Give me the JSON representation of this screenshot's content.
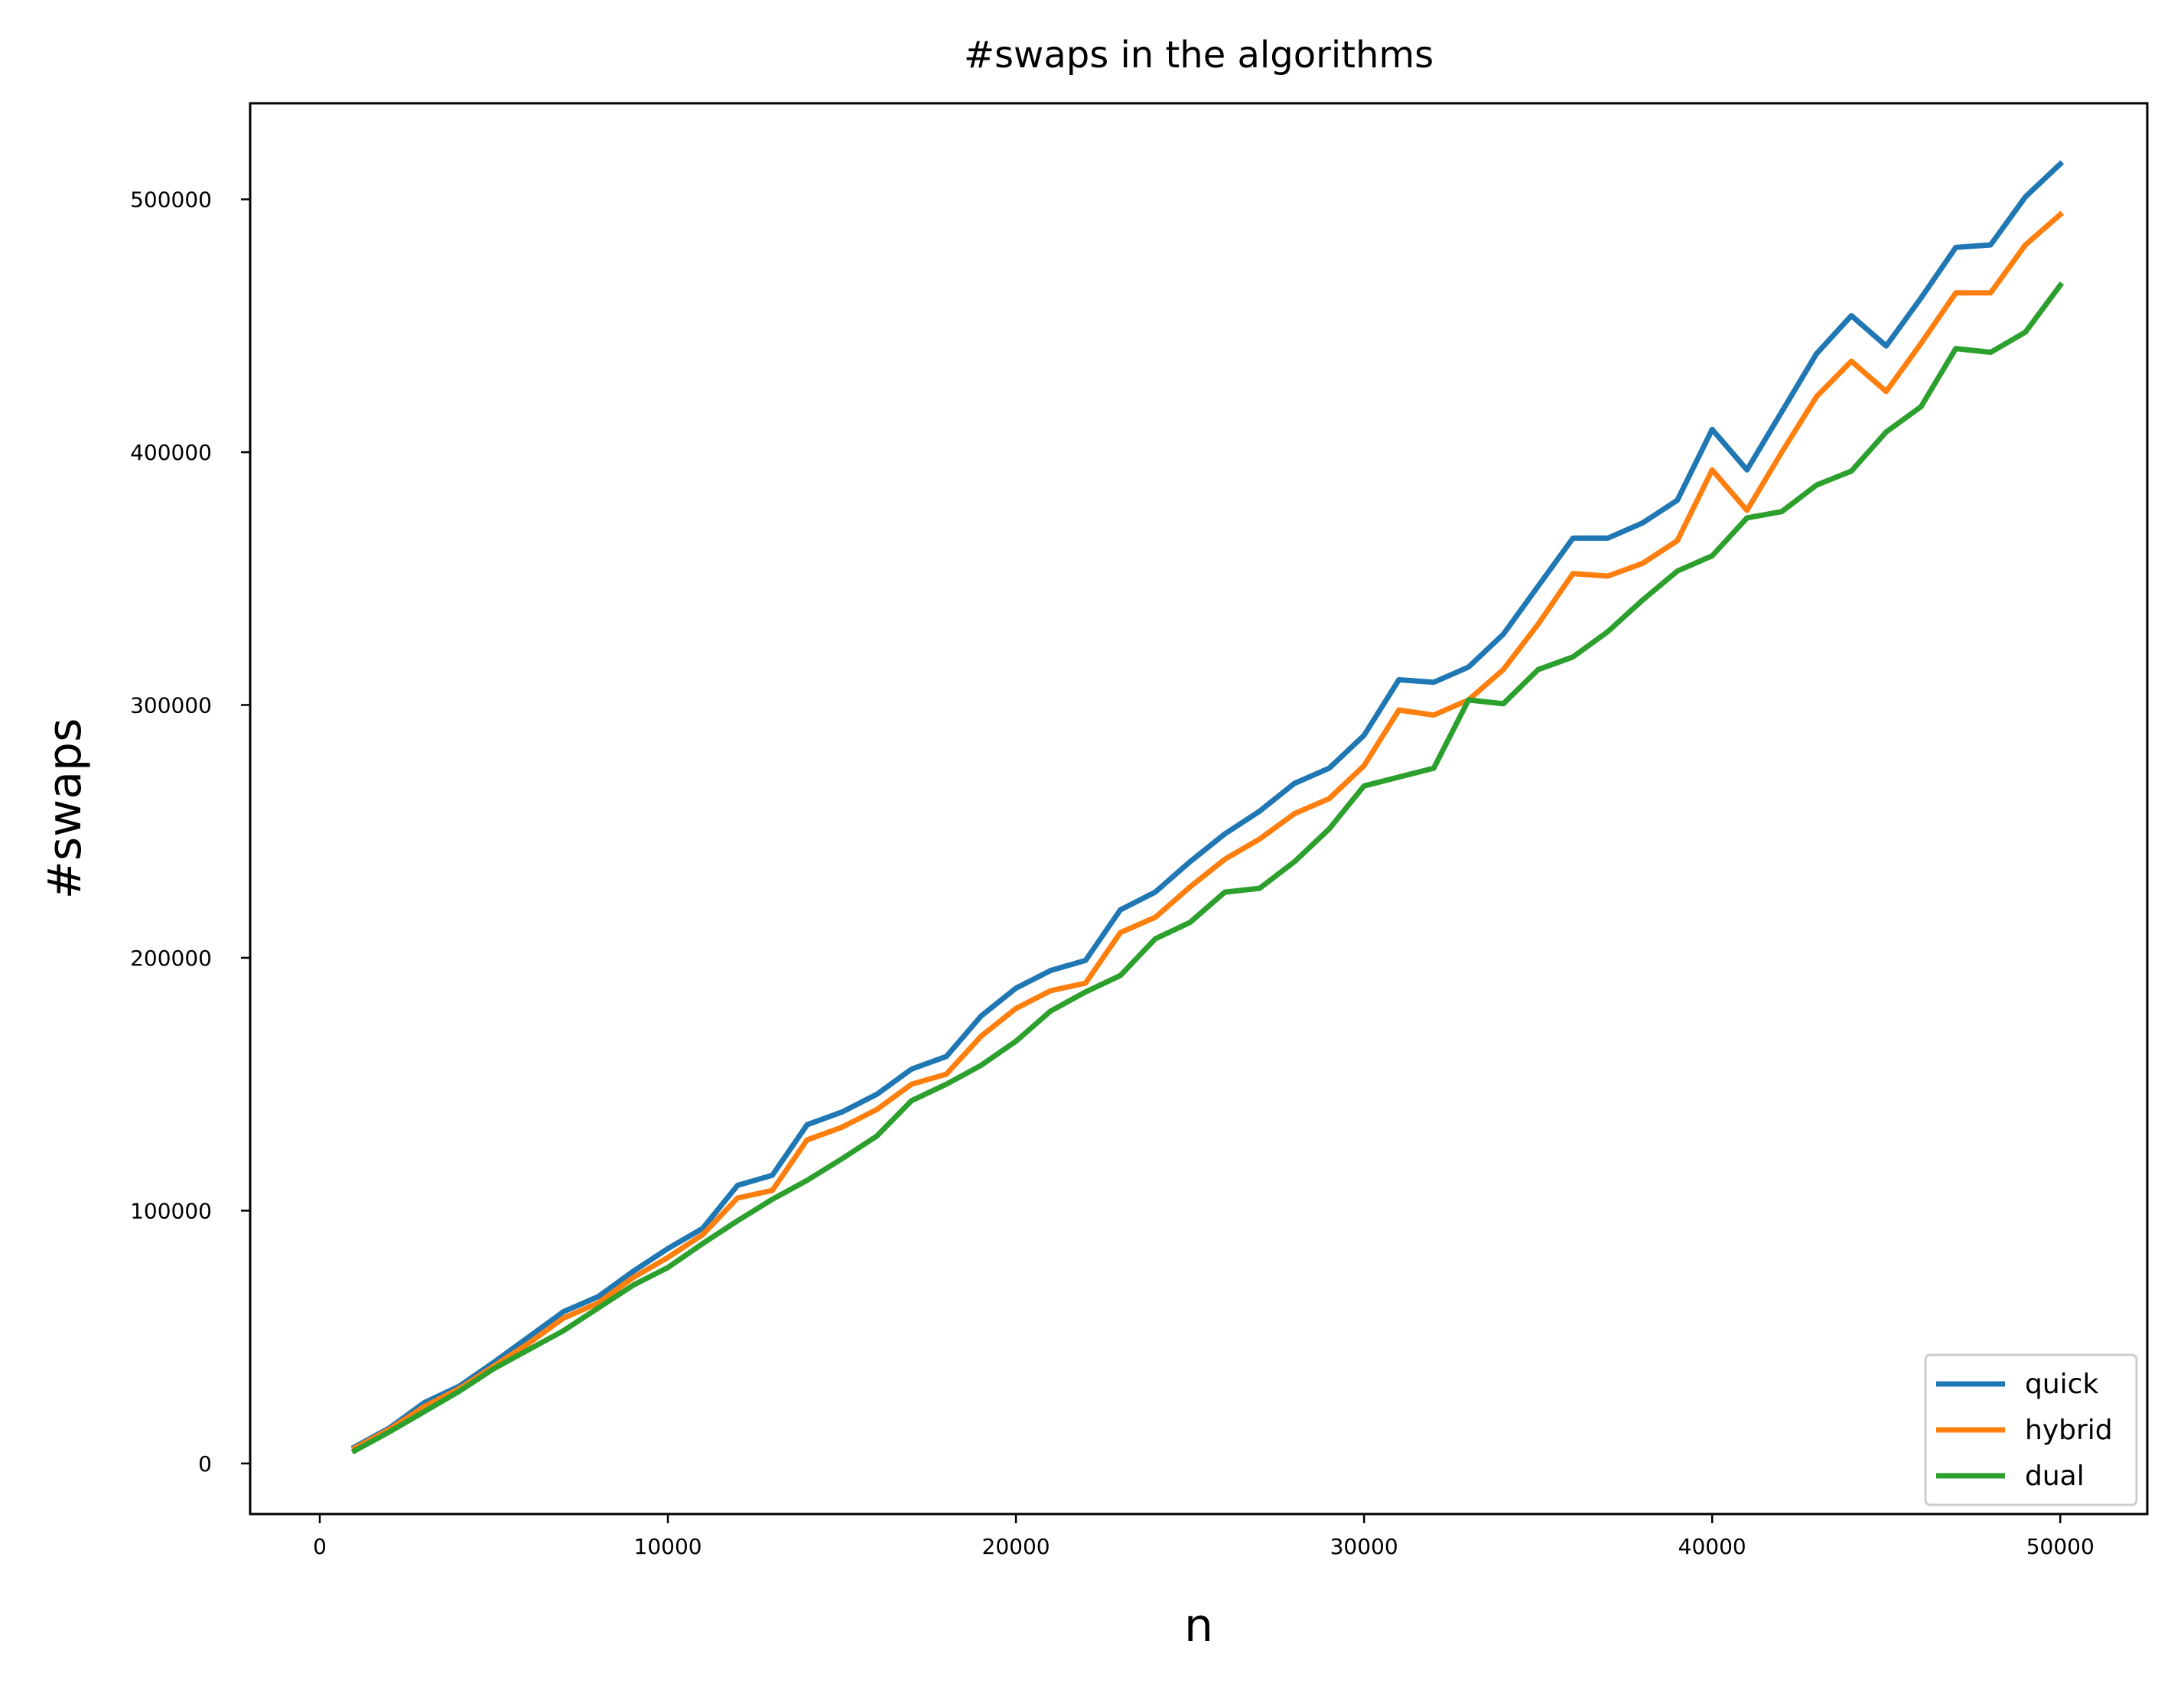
{
  "chart_data": {
    "type": "line",
    "title": "#swaps in the algorithms",
    "xlabel": "n",
    "ylabel": "#swaps",
    "xlim": [
      -2000,
      52500
    ],
    "ylim": [
      -20000,
      538000
    ],
    "x_ticks": [
      0,
      10000,
      20000,
      30000,
      40000,
      50000
    ],
    "x_tick_labels": [
      "0",
      "10000",
      "20000",
      "30000",
      "40000",
      "50000"
    ],
    "y_ticks": [
      0,
      100000,
      200000,
      300000,
      400000,
      500000
    ],
    "y_tick_labels": [
      "0",
      "100000",
      "200000",
      "300000",
      "400000",
      "500000"
    ],
    "grid": false,
    "legend_position": "lower-right",
    "x": [
      1000,
      2000,
      3000,
      4000,
      5000,
      6000,
      7000,
      8000,
      9000,
      10000,
      11000,
      12000,
      13000,
      14000,
      15000,
      16000,
      17000,
      18000,
      19000,
      20000,
      21000,
      22000,
      23000,
      24000,
      25000,
      26000,
      27000,
      28000,
      29000,
      30000,
      31000,
      32000,
      33000,
      34000,
      35000,
      36000,
      37000,
      38000,
      39000,
      40000,
      41000,
      42000,
      43000,
      44000,
      45000,
      46000,
      47000,
      48000,
      49000,
      50000
    ],
    "series": [
      {
        "name": "quick",
        "color": "#1f77b4",
        "values": [
          6500,
          14000,
          24000,
          30500,
          40000,
          50000,
          60000,
          66000,
          76000,
          85000,
          93000,
          110000,
          114000,
          134000,
          139000,
          146000,
          156000,
          161000,
          177000,
          188000,
          195000,
          199000,
          219000,
          226000,
          238000,
          249000,
          258000,
          269000,
          275000,
          288000,
          310000,
          309000,
          315000,
          328000,
          347000,
          366000,
          366000,
          372000,
          381000,
          409000,
          393000,
          416000,
          439000,
          454000,
          442000,
          461000,
          481000,
          482000,
          501000,
          514000
        ]
      },
      {
        "name": "hybrid",
        "color": "#ff7f0e",
        "values": [
          6000,
          13500,
          22500,
          29500,
          38500,
          47500,
          57500,
          63500,
          73500,
          81500,
          90500,
          105000,
          108000,
          128000,
          133000,
          140000,
          150000,
          154000,
          169000,
          180000,
          187000,
          190000,
          210000,
          216000,
          228000,
          239000,
          247000,
          257000,
          263000,
          276000,
          298000,
          296000,
          302000,
          314000,
          332000,
          352000,
          351000,
          356000,
          365000,
          393000,
          377000,
          400000,
          422000,
          436000,
          424000,
          443000,
          463000,
          463000,
          482000,
          494000
        ]
      },
      {
        "name": "dual",
        "color": "#2ca02c",
        "values": [
          5000,
          12500,
          20500,
          28500,
          37500,
          45000,
          52500,
          61500,
          70500,
          77500,
          87000,
          96000,
          104500,
          112000,
          120500,
          129500,
          143500,
          150000,
          157500,
          167000,
          179000,
          186500,
          193000,
          207500,
          214000,
          226000,
          227500,
          238000,
          251000,
          268000,
          271500,
          275000,
          302000,
          300500,
          314000,
          319000,
          329000,
          341500,
          353000,
          359000,
          374000,
          376500,
          387000,
          392500,
          408000,
          418000,
          441000,
          439500,
          447500,
          466000
        ]
      }
    ]
  }
}
